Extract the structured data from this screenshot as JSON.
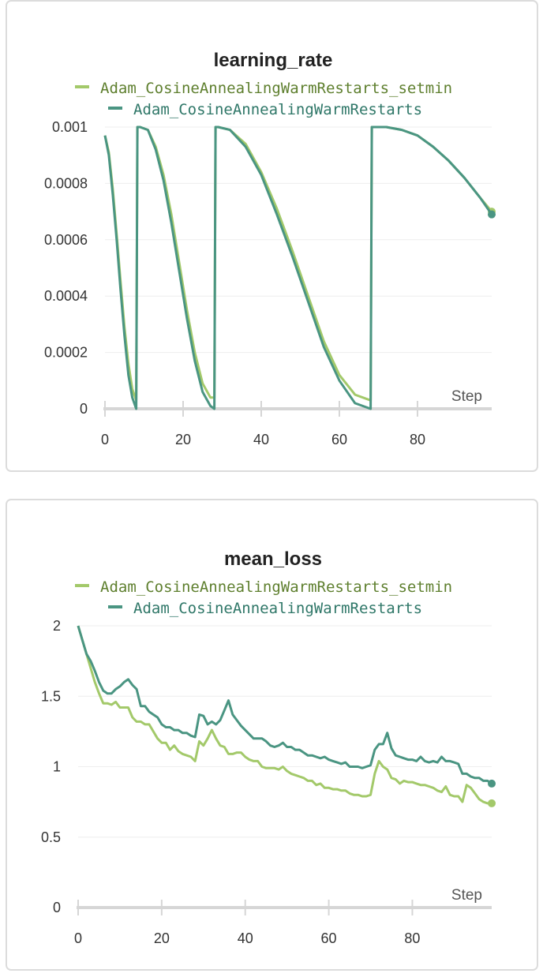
{
  "chart_data": [
    {
      "type": "line",
      "title": "learning_rate",
      "xlabel": "Step",
      "ylabel": "",
      "xlim": [
        0,
        99
      ],
      "ylim": [
        0,
        0.001
      ],
      "x_ticks": [
        "0",
        "20",
        "40",
        "60",
        "80"
      ],
      "y_ticks": [
        "0",
        "0.0002",
        "0.0004",
        "0.0006",
        "0.0008",
        "0.001"
      ],
      "grid": true,
      "legend": "top-center",
      "series": [
        {
          "name": "Adam_CosineAnnealingWarmRestarts_setmin",
          "color": "#a3c96a",
          "x": [
            0,
            1,
            2,
            3,
            4,
            5,
            6,
            7,
            8,
            8.3,
            9,
            11,
            13,
            15,
            17,
            19,
            21,
            23,
            25,
            27,
            28,
            28.3,
            29,
            32,
            36,
            40,
            44,
            48,
            52,
            56,
            60,
            64,
            68,
            68.3,
            69,
            72,
            76,
            80,
            84,
            88,
            92,
            96,
            99
          ],
          "values": [
            0.00097,
            0.00091,
            0.00078,
            0.00062,
            0.00045,
            0.00029,
            0.00016,
            7e-05,
            3e-05,
            0.001,
            0.001,
            0.00099,
            0.00093,
            0.00083,
            0.00069,
            0.00052,
            0.00035,
            0.0002,
            9e-05,
            4e-05,
            4e-05,
            0.001,
            0.001,
            0.00099,
            0.00094,
            0.00084,
            0.00071,
            0.00056,
            0.0004,
            0.00024,
            0.00012,
            5e-05,
            3e-05,
            0.001,
            0.001,
            0.001,
            0.00099,
            0.00097,
            0.00093,
            0.00088,
            0.00082,
            0.00075,
            0.0007
          ]
        },
        {
          "name": "Adam_CosineAnnealingWarmRestarts",
          "color": "#4a9582",
          "x": [
            0,
            1,
            2,
            3,
            4,
            5,
            6,
            7,
            8,
            8.3,
            9,
            11,
            13,
            15,
            17,
            19,
            21,
            23,
            25,
            27,
            28,
            28.3,
            29,
            32,
            36,
            40,
            44,
            48,
            52,
            56,
            60,
            64,
            68,
            68.3,
            69,
            72,
            76,
            80,
            84,
            88,
            92,
            96,
            99
          ],
          "values": [
            0.00097,
            0.0009,
            0.00076,
            0.0006,
            0.00042,
            0.00026,
            0.00012,
            4e-05,
            0.0,
            0.001,
            0.001,
            0.00099,
            0.00092,
            0.00081,
            0.00066,
            0.00049,
            0.00032,
            0.00017,
            6e-05,
            1e-05,
            0.0,
            0.001,
            0.001,
            0.00099,
            0.00093,
            0.00083,
            0.00069,
            0.00054,
            0.00038,
            0.00022,
            0.0001,
            2e-05,
            0.0,
            0.001,
            0.001,
            0.001,
            0.00099,
            0.00097,
            0.00093,
            0.00088,
            0.00082,
            0.00075,
            0.00069
          ]
        }
      ]
    },
    {
      "type": "line",
      "title": "mean_loss",
      "xlabel": "Step",
      "ylabel": "",
      "xlim": [
        0,
        99
      ],
      "ylim": [
        0,
        2
      ],
      "x_ticks": [
        "0",
        "20",
        "40",
        "60",
        "80"
      ],
      "y_ticks": [
        "0",
        "0.5",
        "1",
        "1.5",
        "2"
      ],
      "grid": true,
      "legend": "top-center",
      "series": [
        {
          "name": "Adam_CosineAnnealingWarmRestarts_setmin",
          "color": "#a3c96a",
          "x": [
            0,
            1,
            2,
            3,
            4,
            5,
            6,
            7,
            8,
            9,
            10,
            11,
            12,
            13,
            14,
            15,
            16,
            17,
            18,
            19,
            20,
            21,
            22,
            23,
            24,
            25,
            26,
            27,
            28,
            29,
            30,
            31,
            32,
            33,
            34,
            35,
            36,
            37,
            38,
            39,
            40,
            41,
            42,
            43,
            44,
            45,
            46,
            47,
            48,
            49,
            50,
            51,
            52,
            53,
            54,
            55,
            56,
            57,
            58,
            59,
            60,
            61,
            62,
            63,
            64,
            65,
            66,
            67,
            68,
            69,
            70,
            71,
            72,
            73,
            74,
            75,
            76,
            77,
            78,
            79,
            80,
            81,
            82,
            83,
            84,
            85,
            86,
            87,
            88,
            89,
            90,
            91,
            92,
            93,
            94,
            95,
            96,
            97,
            98,
            99
          ],
          "values": [
            2.0,
            1.9,
            1.8,
            1.7,
            1.6,
            1.52,
            1.45,
            1.45,
            1.44,
            1.46,
            1.42,
            1.42,
            1.42,
            1.35,
            1.32,
            1.32,
            1.3,
            1.3,
            1.25,
            1.2,
            1.17,
            1.17,
            1.12,
            1.15,
            1.11,
            1.09,
            1.08,
            1.07,
            1.04,
            1.18,
            1.15,
            1.2,
            1.26,
            1.2,
            1.15,
            1.14,
            1.09,
            1.09,
            1.1,
            1.1,
            1.07,
            1.05,
            1.04,
            1.04,
            1.0,
            0.99,
            0.99,
            0.99,
            0.98,
            1.0,
            0.97,
            0.95,
            0.94,
            0.93,
            0.92,
            0.9,
            0.9,
            0.87,
            0.88,
            0.85,
            0.85,
            0.84,
            0.84,
            0.83,
            0.83,
            0.81,
            0.8,
            0.8,
            0.79,
            0.79,
            0.8,
            0.95,
            1.04,
            1.0,
            0.98,
            0.92,
            0.91,
            0.88,
            0.9,
            0.89,
            0.89,
            0.88,
            0.87,
            0.87,
            0.86,
            0.85,
            0.83,
            0.82,
            0.86,
            0.8,
            0.79,
            0.79,
            0.75,
            0.87,
            0.85,
            0.81,
            0.77,
            0.75,
            0.74,
            0.74
          ]
        },
        {
          "name": "Adam_CosineAnnealingWarmRestarts",
          "color": "#4a9582",
          "x": [
            0,
            1,
            2,
            3,
            4,
            5,
            6,
            7,
            8,
            9,
            10,
            11,
            12,
            13,
            14,
            15,
            16,
            17,
            18,
            19,
            20,
            21,
            22,
            23,
            24,
            25,
            26,
            27,
            28,
            29,
            30,
            31,
            32,
            33,
            34,
            35,
            36,
            37,
            38,
            39,
            40,
            41,
            42,
            43,
            44,
            45,
            46,
            47,
            48,
            49,
            50,
            51,
            52,
            53,
            54,
            55,
            56,
            57,
            58,
            59,
            60,
            61,
            62,
            63,
            64,
            65,
            66,
            67,
            68,
            69,
            70,
            71,
            72,
            73,
            74,
            75,
            76,
            77,
            78,
            79,
            80,
            81,
            82,
            83,
            84,
            85,
            86,
            87,
            88,
            89,
            90,
            91,
            92,
            93,
            94,
            95,
            96,
            97,
            98,
            99
          ],
          "values": [
            2.0,
            1.9,
            1.8,
            1.75,
            1.68,
            1.6,
            1.54,
            1.52,
            1.52,
            1.55,
            1.57,
            1.6,
            1.62,
            1.58,
            1.55,
            1.43,
            1.43,
            1.39,
            1.37,
            1.35,
            1.3,
            1.28,
            1.28,
            1.26,
            1.26,
            1.24,
            1.24,
            1.22,
            1.21,
            1.37,
            1.36,
            1.3,
            1.32,
            1.3,
            1.33,
            1.4,
            1.47,
            1.37,
            1.33,
            1.29,
            1.26,
            1.23,
            1.2,
            1.2,
            1.2,
            1.18,
            1.15,
            1.14,
            1.15,
            1.17,
            1.14,
            1.14,
            1.12,
            1.12,
            1.1,
            1.08,
            1.08,
            1.07,
            1.06,
            1.07,
            1.05,
            1.04,
            1.03,
            1.02,
            1.03,
            1.0,
            1.0,
            1.0,
            0.99,
            1.0,
            1.01,
            1.12,
            1.16,
            1.16,
            1.24,
            1.13,
            1.08,
            1.07,
            1.06,
            1.05,
            1.05,
            1.04,
            1.07,
            1.04,
            1.03,
            1.04,
            1.03,
            1.07,
            1.04,
            1.04,
            1.03,
            1.02,
            0.95,
            0.95,
            0.93,
            0.92,
            0.92,
            0.9,
            0.9,
            0.88
          ]
        }
      ]
    }
  ]
}
